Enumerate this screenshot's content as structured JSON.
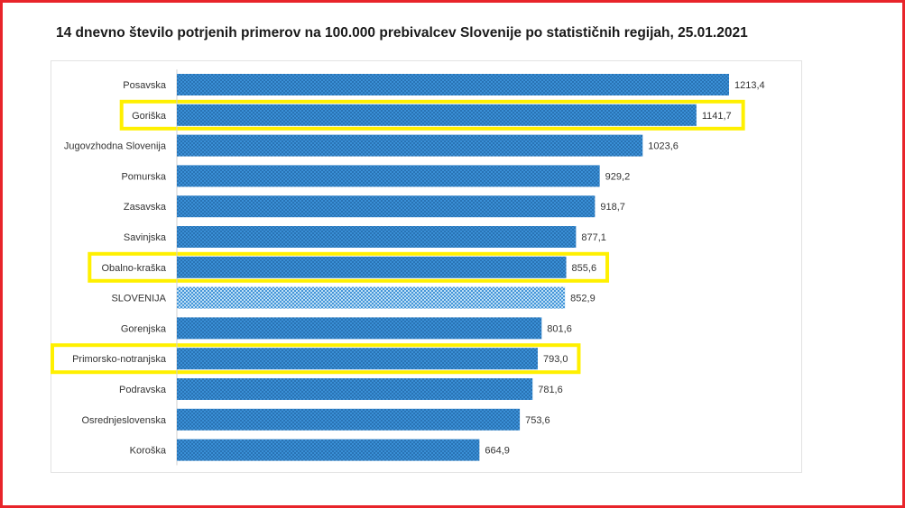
{
  "chart_data": {
    "type": "bar",
    "orientation": "horizontal",
    "title": "14  dnevno število potrjenih primerov na 100.000  prebivalcev Slovenije po statističnih regijah, 25.01.2021",
    "xlabel": "",
    "ylabel": "",
    "xlim": [
      0,
      1300
    ],
    "grid": false,
    "legend": "none",
    "categories": [
      "Posavska",
      "Goriška",
      "Jugovzhodna Slovenija",
      "Pomurska",
      "Zasavska",
      "Savinjska",
      "Obalno-kraška",
      "SLOVENIJA",
      "Gorenjska",
      "Primorsko-notranjska",
      "Podravska",
      "Osrednjeslovenska",
      "Koroška"
    ],
    "values": [
      1213.4,
      1141.7,
      1023.6,
      929.2,
      918.7,
      877.1,
      855.6,
      852.9,
      801.6,
      793.0,
      781.6,
      753.6,
      664.9
    ],
    "value_labels": [
      "1213,4",
      "1141,7",
      "1023,6",
      "929,2",
      "918,7",
      "877,1",
      "855,6",
      "852,9",
      "801,6",
      "793,0",
      "781,6",
      "753,6",
      "664,9"
    ],
    "highlighted": [
      "Goriška",
      "Obalno-kraška",
      "Primorsko-notranjska"
    ],
    "national_category": "SLOVENIJA",
    "colors": {
      "bar": "#3a8fd6",
      "bar_dots": "#1c5f9c",
      "national_bar": "#bfe0f6",
      "national_dots": "#3a8fd6",
      "highlight": "#fff000",
      "frame": "#e8242a"
    }
  }
}
